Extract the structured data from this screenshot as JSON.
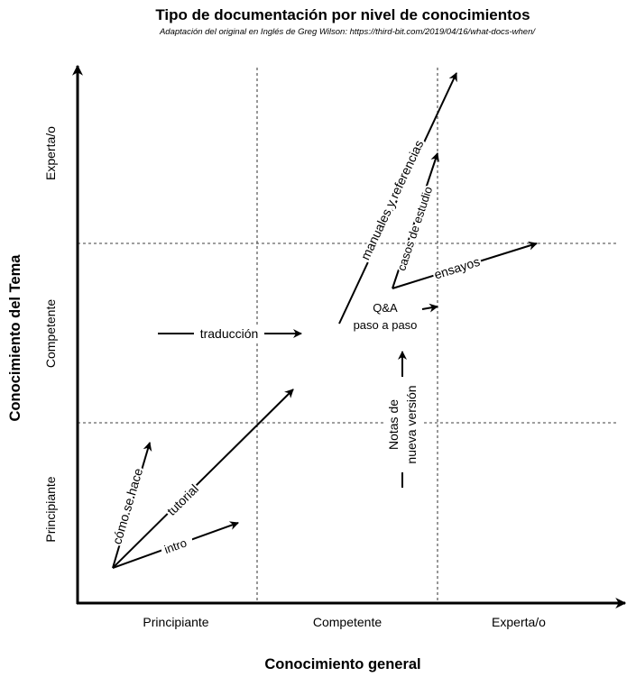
{
  "title": "Tipo de documentación por nivel de conocimientos",
  "subtitle": "Adaptación del original en Inglés de Greg Wilson: https://third-bit.com/2019/04/16/what-docs-when/",
  "x_axis": {
    "title": "Conocimiento general",
    "levels": [
      "Principiante",
      "Competente",
      "Experta/o"
    ]
  },
  "y_axis": {
    "title": "Conocimiento del Tema",
    "levels": [
      "Principiante",
      "Competente",
      "Experta/o"
    ]
  },
  "doc_types": {
    "intro": "intro",
    "tutorial": "tutorial",
    "howto": "cómo se hace",
    "translation": "traducción",
    "manuals": "manuales y referencias",
    "case_studies": "casos de estudio",
    "essays": "ensayos",
    "qa": "Q&A",
    "step_by_step": "paso a paso",
    "release_notes_line1": "Notas de",
    "release_notes_line2": "nueva versión"
  }
}
